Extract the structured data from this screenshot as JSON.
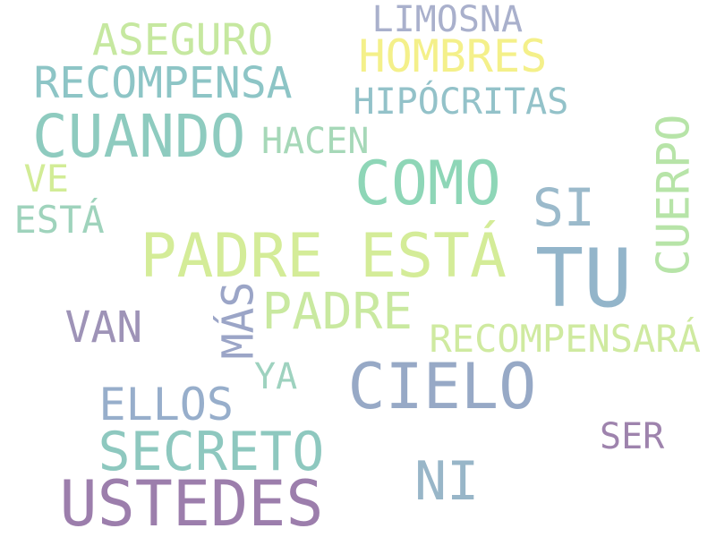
{
  "words": [
    {
      "text": "LIMOSNA",
      "color": "#a9b0cc"
    },
    {
      "text": "ASEGURO",
      "color": "#c6e8a0"
    },
    {
      "text": "HOMBRES",
      "color": "#f4f08a"
    },
    {
      "text": "RECOMPENSA",
      "color": "#8dc5c6"
    },
    {
      "text": "HIPÓCRITAS",
      "color": "#93c2c9"
    },
    {
      "text": "CUANDO",
      "color": "#8ecbbf"
    },
    {
      "text": "HACEN",
      "color": "#a6d8b8"
    },
    {
      "text": "CUERPO",
      "color": "#b7e4a8"
    },
    {
      "text": "VE",
      "color": "#d2ec96"
    },
    {
      "text": "COMO",
      "color": "#8ed6b7"
    },
    {
      "text": "SI",
      "color": "#9bbacb"
    },
    {
      "text": "ESTÁ",
      "color": "#9fd3bc"
    },
    {
      "text": "PADRE ESTÁ",
      "color": "#d4ec98"
    },
    {
      "text": "TU",
      "color": "#93b5ca"
    },
    {
      "text": "MÁS",
      "color": "#9ba5c7"
    },
    {
      "text": "PADRE",
      "color": "#c9e9a0"
    },
    {
      "text": "VAN",
      "color": "#9e93b7"
    },
    {
      "text": "RECOMPENSARÁ",
      "color": "#cfeaa0"
    },
    {
      "text": "YA",
      "color": "#9ed2bf"
    },
    {
      "text": "CIELO",
      "color": "#97a9c6"
    },
    {
      "text": "ELLOS",
      "color": "#97aecb"
    },
    {
      "text": "SER",
      "color": "#9e83ad"
    },
    {
      "text": "SECRETO",
      "color": "#8ec8bf"
    },
    {
      "text": "NI",
      "color": "#98b6c8"
    },
    {
      "text": "USTEDES",
      "color": "#9c7eac"
    }
  ]
}
